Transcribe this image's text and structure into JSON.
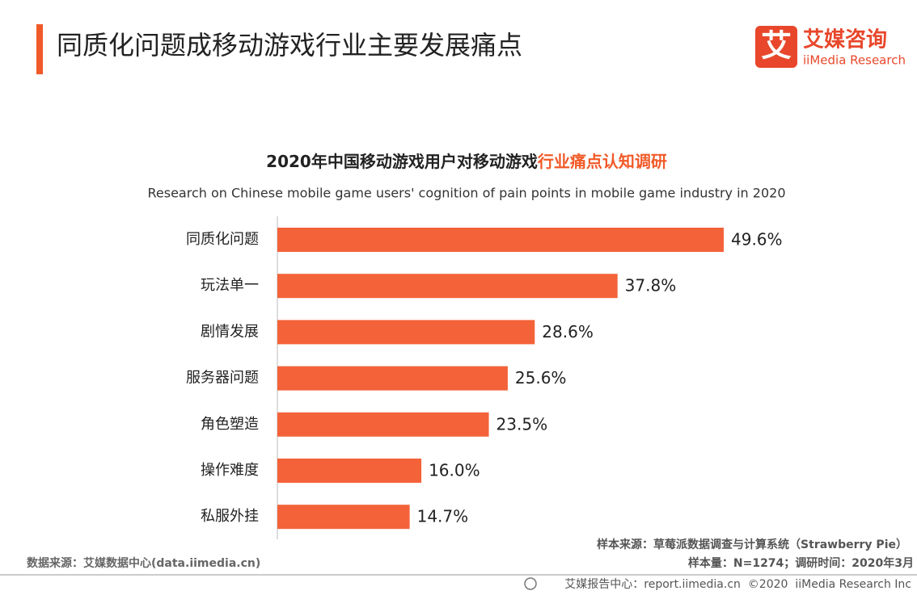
{
  "header": {
    "title": "同质化问题成移动游戏行业主要发展痛点",
    "logo_icon": "艾",
    "logo_name": "艾媒咨询",
    "logo_en": "iiMedia Research"
  },
  "chart_data": {
    "type": "hbar",
    "title": [
      "2020年中国移动游戏用户对移动游戏",
      "行业痛点认知调研"
    ],
    "subtitle": "Research on Chinese mobile game users' cognition of pain points in mobile game industry in 2020",
    "categories": [
      "同质化问题",
      "玩法单一",
      "剧情发展",
      "服务器问题",
      "角色塑造",
      "操作难度",
      "私服外挂"
    ],
    "values": [
      49.6,
      37.8,
      28.6,
      25.6,
      23.5,
      16.0,
      14.7
    ],
    "value_labels": [
      "49.6%",
      "37.8%",
      "28.6%",
      "25.6%",
      "23.5%",
      "16.0%",
      "14.7%"
    ],
    "color": "#f4623a",
    "title_highlight_color": "#f05a28"
  },
  "footer": {
    "sample_source": "样本来源：草莓派数据调查与计算系统（Strawberry Pie）",
    "sample_size": "样本量：N=1274；调研时间：2020年3月",
    "data_source": "数据来源：艾媒数据中心(data.iimedia.cn)",
    "report": "艾媒报告中心：report.iimedia.cn  ©2020  iiMedia Research Inc"
  }
}
